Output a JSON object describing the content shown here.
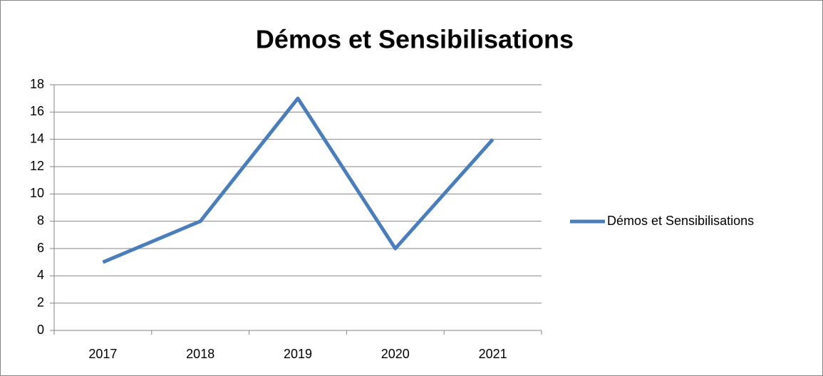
{
  "chart_data": {
    "type": "line",
    "title": "Démos et Sensibilisations",
    "categories": [
      "2017",
      "2018",
      "2019",
      "2020",
      "2021"
    ],
    "series": [
      {
        "name": "Démos et Sensibilisations",
        "color": "#4a7ebb",
        "values": [
          5,
          8,
          17,
          6,
          14
        ]
      }
    ],
    "ylim": [
      0,
      18
    ],
    "yticks": [
      0,
      2,
      4,
      6,
      8,
      10,
      12,
      14,
      16,
      18
    ],
    "grid": true,
    "legend": "right"
  }
}
